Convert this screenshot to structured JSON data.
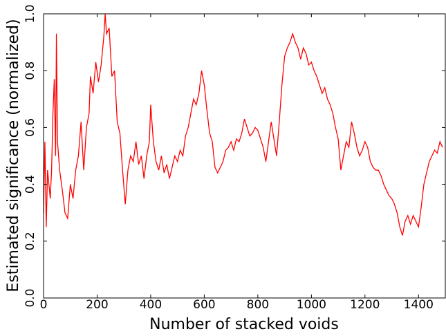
{
  "chart_data": {
    "type": "line",
    "xlabel": "Number of stacked voids",
    "ylabel": "Estimated significance (normalized)",
    "xlim": [
      0,
      1500
    ],
    "ylim": [
      0,
      1
    ],
    "xticks": [
      0,
      200,
      400,
      600,
      800,
      1000,
      1200,
      1400
    ],
    "yticks": [
      {
        "value": 0,
        "label": "0.0"
      },
      0.2,
      0.4,
      0.6,
      0.8,
      {
        "value": 1,
        "label": "1.0"
      }
    ],
    "x": [
      0,
      5,
      10,
      15,
      20,
      25,
      30,
      35,
      40,
      45,
      48,
      52,
      60,
      70,
      80,
      90,
      100,
      110,
      120,
      130,
      140,
      150,
      160,
      170,
      175,
      185,
      195,
      205,
      215,
      225,
      230,
      235,
      245,
      255,
      265,
      275,
      285,
      295,
      305,
      315,
      325,
      335,
      345,
      355,
      365,
      375,
      385,
      395,
      400,
      410,
      420,
      430,
      440,
      450,
      460,
      470,
      480,
      490,
      500,
      510,
      520,
      530,
      540,
      550,
      560,
      570,
      580,
      590,
      600,
      610,
      620,
      630,
      640,
      650,
      660,
      670,
      680,
      690,
      700,
      710,
      720,
      730,
      740,
      750,
      760,
      770,
      780,
      790,
      800,
      810,
      820,
      830,
      840,
      850,
      860,
      870,
      880,
      890,
      900,
      910,
      920,
      930,
      940,
      950,
      960,
      970,
      980,
      990,
      1000,
      1010,
      1020,
      1030,
      1040,
      1050,
      1060,
      1070,
      1080,
      1090,
      1100,
      1110,
      1120,
      1130,
      1140,
      1150,
      1160,
      1170,
      1180,
      1190,
      1200,
      1210,
      1220,
      1230,
      1240,
      1250,
      1260,
      1270,
      1280,
      1290,
      1300,
      1310,
      1320,
      1330,
      1340,
      1350,
      1360,
      1370,
      1380,
      1390,
      1400,
      1410,
      1420,
      1430,
      1440,
      1450,
      1460,
      1470,
      1480,
      1490
    ],
    "series": [
      {
        "color": "#ff0000",
        "values": [
          0.3,
          0.55,
          0.25,
          0.45,
          0.4,
          0.35,
          0.45,
          0.65,
          0.77,
          0.5,
          0.93,
          0.55,
          0.45,
          0.38,
          0.3,
          0.28,
          0.4,
          0.35,
          0.45,
          0.5,
          0.62,
          0.45,
          0.6,
          0.65,
          0.78,
          0.72,
          0.83,
          0.76,
          0.82,
          0.92,
          1.0,
          0.93,
          0.95,
          0.78,
          0.8,
          0.62,
          0.58,
          0.45,
          0.33,
          0.45,
          0.5,
          0.48,
          0.55,
          0.47,
          0.5,
          0.42,
          0.5,
          0.55,
          0.68,
          0.55,
          0.48,
          0.45,
          0.5,
          0.44,
          0.47,
          0.42,
          0.46,
          0.5,
          0.48,
          0.52,
          0.5,
          0.57,
          0.6,
          0.65,
          0.7,
          0.68,
          0.72,
          0.8,
          0.75,
          0.66,
          0.58,
          0.55,
          0.46,
          0.44,
          0.46,
          0.48,
          0.52,
          0.53,
          0.55,
          0.52,
          0.56,
          0.55,
          0.58,
          0.63,
          0.6,
          0.57,
          0.58,
          0.6,
          0.59,
          0.56,
          0.53,
          0.48,
          0.55,
          0.62,
          0.56,
          0.5,
          0.62,
          0.75,
          0.85,
          0.88,
          0.9,
          0.93,
          0.9,
          0.88,
          0.84,
          0.88,
          0.86,
          0.82,
          0.83,
          0.8,
          0.78,
          0.75,
          0.72,
          0.74,
          0.7,
          0.68,
          0.65,
          0.6,
          0.56,
          0.45,
          0.5,
          0.55,
          0.53,
          0.62,
          0.58,
          0.53,
          0.5,
          0.52,
          0.55,
          0.53,
          0.48,
          0.46,
          0.45,
          0.45,
          0.43,
          0.4,
          0.38,
          0.36,
          0.35,
          0.33,
          0.3,
          0.25,
          0.22,
          0.27,
          0.29,
          0.26,
          0.29,
          0.27,
          0.25,
          0.32,
          0.4,
          0.44,
          0.48,
          0.5,
          0.52,
          0.51,
          0.55,
          0.53
        ]
      }
    ]
  }
}
